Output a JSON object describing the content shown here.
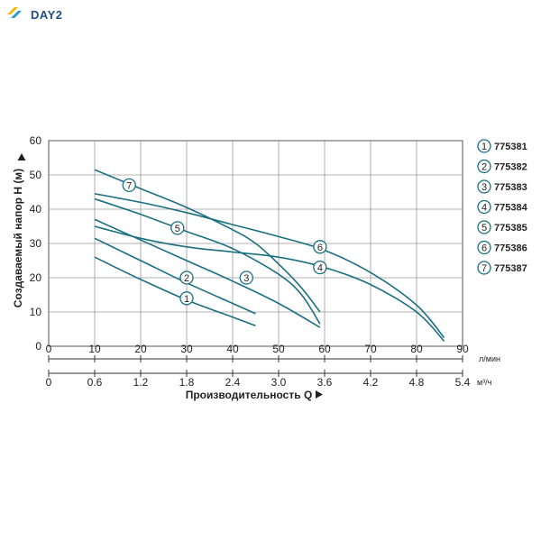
{
  "brand": {
    "logo_text": "DAY2",
    "colors": [
      "#f5b800",
      "#1e9bd7",
      "#1e4f8c"
    ]
  },
  "chart_data": {
    "type": "line",
    "xlabel": "Производительность Q",
    "ylabel": "Создаваемый напор H (м)",
    "x_unit": "л/мин",
    "x2_unit": "м³/ч",
    "xlim": [
      0,
      90
    ],
    "ylim": [
      0,
      60
    ],
    "x_ticks": [
      0,
      10,
      20,
      30,
      40,
      50,
      60,
      70,
      80,
      90
    ],
    "x2_ticks": [
      "0",
      "0.6",
      "1.2",
      "1.8",
      "2.4",
      "3.0",
      "3.6",
      "4.2",
      "4.8",
      "5.4"
    ],
    "y_ticks": [
      0,
      10,
      20,
      30,
      40,
      50,
      60
    ],
    "grid": true,
    "legend_position": "right",
    "line_color": "#1a6f80",
    "series": [
      {
        "name": "775381",
        "marker": "1",
        "label_at": [
          30,
          14
        ],
        "points": [
          [
            10,
            26
          ],
          [
            20,
            19.5
          ],
          [
            30,
            13.5
          ],
          [
            40,
            8.5
          ],
          [
            45,
            6
          ]
        ]
      },
      {
        "name": "775382",
        "marker": "2",
        "label_at": [
          30,
          20
        ],
        "points": [
          [
            10,
            31.5
          ],
          [
            20,
            25
          ],
          [
            30,
            18.5
          ],
          [
            40,
            12.5
          ],
          [
            45,
            9.5
          ]
        ]
      },
      {
        "name": "775383",
        "marker": "3",
        "label_at": [
          43,
          20
        ],
        "points": [
          [
            10,
            37
          ],
          [
            20,
            31
          ],
          [
            30,
            25
          ],
          [
            40,
            19
          ],
          [
            50,
            12.5
          ],
          [
            59,
            5.5
          ]
        ]
      },
      {
        "name": "775384",
        "marker": "4",
        "label_at": [
          59,
          23
        ],
        "points": [
          [
            10,
            35
          ],
          [
            20,
            31.5
          ],
          [
            30,
            29
          ],
          [
            40,
            27.5
          ],
          [
            50,
            26
          ],
          [
            60,
            23
          ],
          [
            70,
            18
          ],
          [
            80,
            10
          ],
          [
            86,
            1.5
          ]
        ]
      },
      {
        "name": "775385",
        "marker": "5",
        "label_at": [
          28,
          34.5
        ],
        "points": [
          [
            10,
            43
          ],
          [
            20,
            38.5
          ],
          [
            30,
            33.5
          ],
          [
            40,
            28.5
          ],
          [
            50,
            21
          ],
          [
            55,
            15
          ],
          [
            59,
            6.5
          ]
        ]
      },
      {
        "name": "775386",
        "marker": "6",
        "label_at": [
          59,
          29
        ],
        "points": [
          [
            10,
            44.5
          ],
          [
            20,
            42
          ],
          [
            30,
            39
          ],
          [
            40,
            35.5
          ],
          [
            50,
            32
          ],
          [
            60,
            28
          ],
          [
            70,
            21.5
          ],
          [
            80,
            12
          ],
          [
            86,
            2.5
          ]
        ]
      },
      {
        "name": "775387",
        "marker": "7",
        "label_at": [
          17.5,
          47
        ],
        "points": [
          [
            10,
            51.5
          ],
          [
            20,
            46
          ],
          [
            30,
            40.5
          ],
          [
            40,
            34
          ],
          [
            45,
            30
          ],
          [
            50,
            24
          ],
          [
            55,
            17
          ],
          [
            59,
            10
          ]
        ]
      }
    ]
  }
}
